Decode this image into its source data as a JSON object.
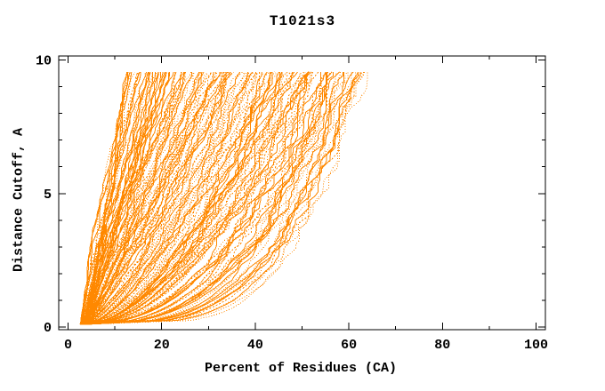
{
  "figure": {
    "background": "#ffffff",
    "axis_color": "#000000",
    "text_color": "#000000"
  },
  "chart_data": {
    "type": "line",
    "title": "T1021s3",
    "xlabel": "Percent of Residues (CA)",
    "ylabel": "Distance Cutoff, A",
    "xlim": [
      -2,
      102
    ],
    "ylim": [
      -0.1,
      10.15
    ],
    "x_major_ticks": [
      0,
      20,
      40,
      60,
      80,
      100
    ],
    "x_minor_ticks": [
      10,
      30,
      50,
      70,
      90
    ],
    "y_major_ticks": [
      0,
      5,
      10
    ],
    "y_minor_ticks": [
      1,
      2,
      3,
      4,
      6,
      7,
      8,
      9
    ],
    "grid": false,
    "legend": "none",
    "series_color": "#FF8800",
    "series_count": 165,
    "cutoff_range": [
      0.1,
      9.55
    ],
    "start_percent_range": [
      2.5,
      4.5
    ],
    "top_percent_range": [
      12,
      63
    ],
    "envelope_left_curve": [
      [
        3.0,
        0.1
      ],
      [
        6.7,
        4.9
      ],
      [
        12.0,
        9.55
      ]
    ],
    "envelope_right_curve": [
      [
        3.0,
        0.1
      ],
      [
        23.0,
        0.5
      ],
      [
        40.0,
        1.3
      ],
      [
        48.0,
        3.9
      ],
      [
        52.0,
        5.5
      ],
      [
        56.2,
        7.2
      ],
      [
        62.5,
        9.55
      ]
    ],
    "shape_exponent_range": [
      1.15,
      0.25
    ],
    "seed": 1021
  }
}
